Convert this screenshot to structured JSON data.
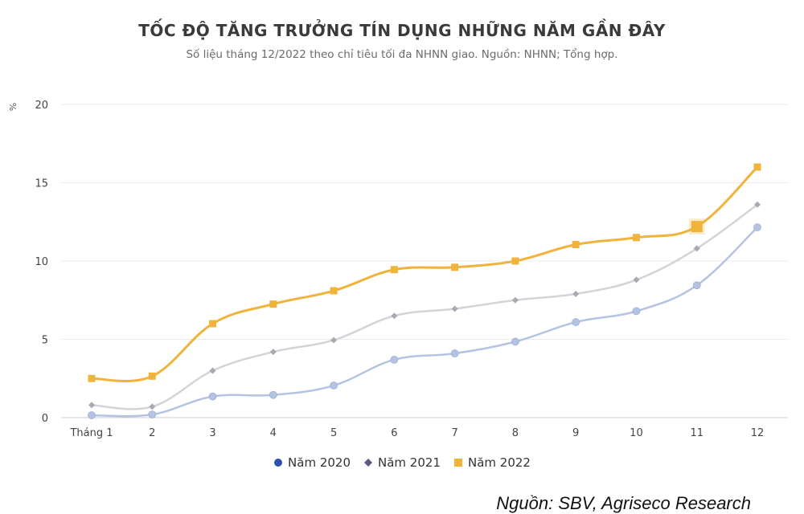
{
  "title": "TỐC ĐỘ TĂNG TRƯỞNG TÍN DỤNG NHỮNG NĂM GẦN ĐÂY",
  "subtitle": "Số liệu tháng 12/2022 theo chỉ tiêu tối đa NHNN giao. Nguồn: NHNN; Tổng hợp.",
  "source": "Nguồn: SBV, Agriseco Research",
  "chart_data": {
    "type": "line",
    "categories": [
      "Tháng 1",
      "2",
      "3",
      "4",
      "5",
      "6",
      "7",
      "8",
      "9",
      "10",
      "11",
      "12"
    ],
    "ylabel": "%",
    "ylim": [
      0,
      20
    ],
    "yticks": [
      0,
      5,
      10,
      15,
      20
    ],
    "grid": true,
    "legend_position": "bottom",
    "series": [
      {
        "name": "Năm 2020",
        "color": "#b4c3e2",
        "legend_color": "#2f4fb0",
        "marker": "circle",
        "values": [
          0.15,
          0.2,
          1.35,
          1.45,
          2.05,
          3.7,
          4.1,
          4.85,
          6.1,
          6.8,
          8.45,
          12.15
        ]
      },
      {
        "name": "Năm 2021",
        "color": "#d3d3d8",
        "legend_color": "#5a5a7a",
        "marker": "diamond",
        "values": [
          0.8,
          0.7,
          3.0,
          4.2,
          4.95,
          6.5,
          6.95,
          7.5,
          7.9,
          8.8,
          10.8,
          13.6
        ]
      },
      {
        "name": "Năm 2022",
        "color": "#f0b33c",
        "legend_color": "#f0b33c",
        "marker": "square",
        "values": [
          2.5,
          2.65,
          6.0,
          7.25,
          8.1,
          9.45,
          9.6,
          10.0,
          11.05,
          11.5,
          12.2,
          16.0
        ]
      }
    ]
  }
}
